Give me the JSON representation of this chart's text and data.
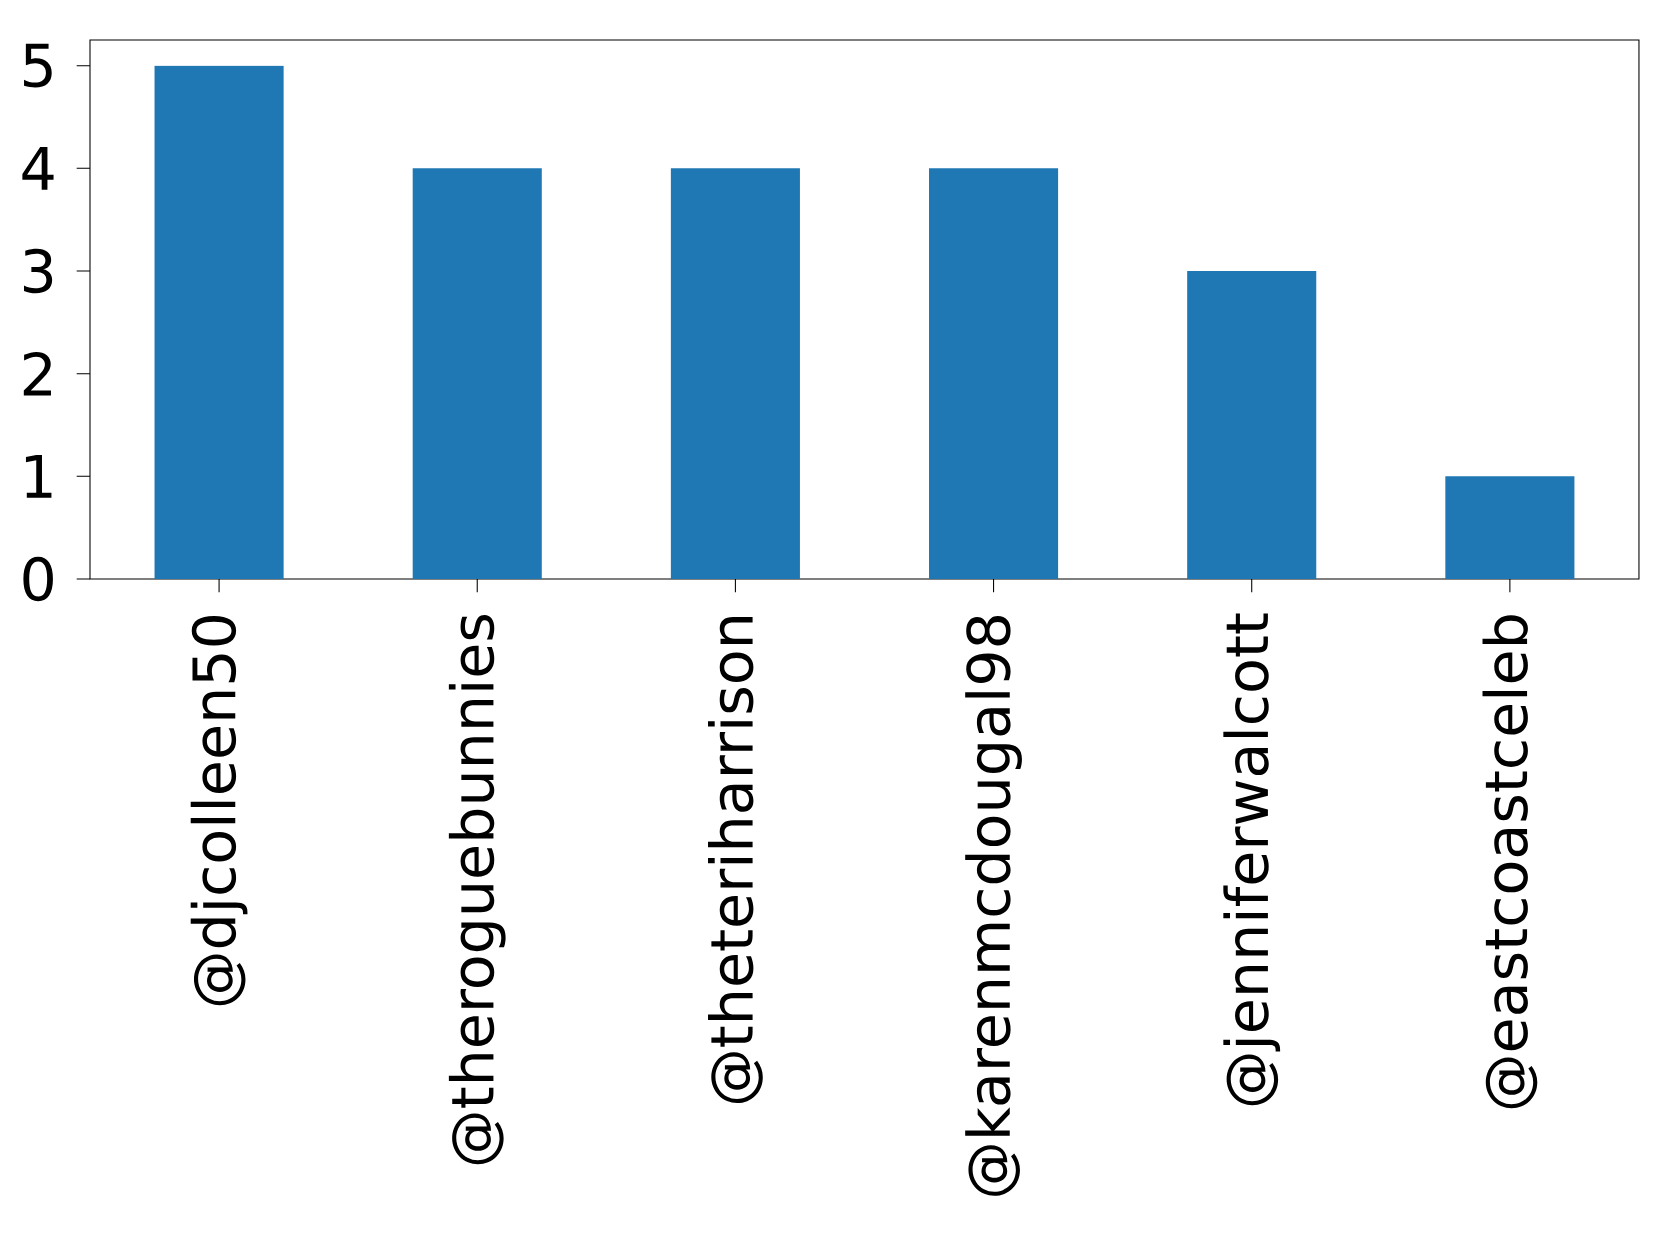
{
  "chart_data": {
    "type": "bar",
    "categories": [
      "@djcolleen50",
      "@theroguebunnies",
      "@theteriharrison",
      "@karenmcdougal98",
      "@jenniferwalcott",
      "@eastcoastceleb"
    ],
    "values": [
      5,
      4,
      4,
      4,
      3,
      1
    ],
    "color": "#1f77b4",
    "ylim": [
      0,
      5.25
    ],
    "yticks": [
      0,
      1,
      2,
      3,
      4,
      5
    ],
    "grid": false
  }
}
